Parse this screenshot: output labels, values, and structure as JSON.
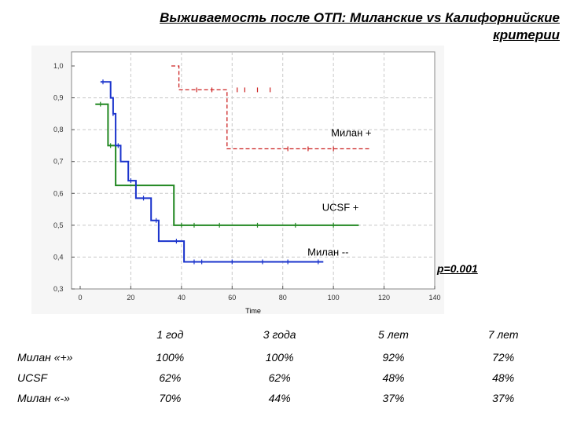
{
  "title": {
    "line1": "Выживаемость после ОТП: Миланские vs Калифорнийские",
    "line2": "критерии"
  },
  "p_value": "p=0.001",
  "chart_data": {
    "type": "line",
    "title": "Выживаемость после ОТП: Миланские vs Калифорнийские критерии",
    "xlabel": "Time",
    "ylabel": "",
    "xlim": [
      0,
      140
    ],
    "ylim": [
      0.3,
      1.0
    ],
    "xticks": [
      "0",
      "20",
      "40",
      "60",
      "80",
      "100",
      "120",
      "140"
    ],
    "yticks": [
      "1,0",
      "0,9",
      "0,8",
      "0,7",
      "0,6",
      "0,5",
      "0,4",
      "0,3"
    ],
    "grid": true,
    "series": [
      {
        "name": "Милан +",
        "color": "#cc2222",
        "style": "dashed",
        "points": [
          [
            36,
            1.0
          ],
          [
            39,
            1.0
          ],
          [
            39,
            0.925
          ],
          [
            58,
            0.925
          ],
          [
            58,
            0.74
          ],
          [
            115,
            0.74
          ]
        ],
        "censored": [
          [
            46,
            0.925
          ],
          [
            52,
            0.925
          ],
          [
            62,
            0.925
          ],
          [
            65,
            0.925
          ],
          [
            70,
            0.925
          ],
          [
            75,
            0.925
          ],
          [
            82,
            0.74
          ],
          [
            90,
            0.74
          ],
          [
            100,
            0.74
          ]
        ]
      },
      {
        "name": "UCSF +",
        "color": "#228822",
        "style": "solid",
        "points": [
          [
            6,
            0.88
          ],
          [
            11,
            0.88
          ],
          [
            11,
            0.75
          ],
          [
            14,
            0.75
          ],
          [
            14,
            0.625
          ],
          [
            37,
            0.625
          ],
          [
            37,
            0.5
          ],
          [
            110,
            0.5
          ]
        ],
        "censored": [
          [
            8,
            0.88
          ],
          [
            12,
            0.75
          ],
          [
            40,
            0.5
          ],
          [
            45,
            0.5
          ],
          [
            55,
            0.5
          ],
          [
            70,
            0.5
          ],
          [
            85,
            0.5
          ],
          [
            100,
            0.5
          ]
        ]
      },
      {
        "name": "Милан --",
        "color": "#1a33cc",
        "style": "solid",
        "points": [
          [
            8,
            0.95
          ],
          [
            12,
            0.95
          ],
          [
            12,
            0.9
          ],
          [
            13,
            0.9
          ],
          [
            13,
            0.85
          ],
          [
            14,
            0.85
          ],
          [
            14,
            0.75
          ],
          [
            16,
            0.75
          ],
          [
            16,
            0.7
          ],
          [
            19,
            0.7
          ],
          [
            19,
            0.64
          ],
          [
            22,
            0.64
          ],
          [
            22,
            0.585
          ],
          [
            28,
            0.585
          ],
          [
            28,
            0.515
          ],
          [
            31,
            0.515
          ],
          [
            31,
            0.45
          ],
          [
            41,
            0.45
          ],
          [
            41,
            0.385
          ],
          [
            96,
            0.385
          ]
        ],
        "censored": [
          [
            9,
            0.95
          ],
          [
            13,
            0.85
          ],
          [
            15,
            0.75
          ],
          [
            20,
            0.64
          ],
          [
            25,
            0.585
          ],
          [
            30,
            0.515
          ],
          [
            38,
            0.45
          ],
          [
            45,
            0.385
          ],
          [
            48,
            0.385
          ],
          [
            60,
            0.385
          ],
          [
            72,
            0.385
          ],
          [
            82,
            0.385
          ],
          [
            94,
            0.385
          ]
        ]
      }
    ],
    "annotations": [
      {
        "text": "Милан +",
        "x": 115,
        "y": 0.78
      },
      {
        "text": "UCSF +",
        "x": 110,
        "y": 0.545
      },
      {
        "text": "Милан --",
        "x": 106,
        "y": 0.405
      }
    ]
  },
  "table": {
    "headers": [
      "",
      "1 год",
      "3 года",
      "5 лет",
      "7 лет"
    ],
    "rows": [
      {
        "label": "Милан «+»",
        "values": [
          "100%",
          "100%",
          "92%",
          "72%"
        ]
      },
      {
        "label": "UCSF",
        "values": [
          "62%",
          "62%",
          "48%",
          "48%"
        ]
      },
      {
        "label": "Милан «-»",
        "values": [
          "70%",
          "44%",
          "37%",
          "37%"
        ]
      }
    ]
  }
}
